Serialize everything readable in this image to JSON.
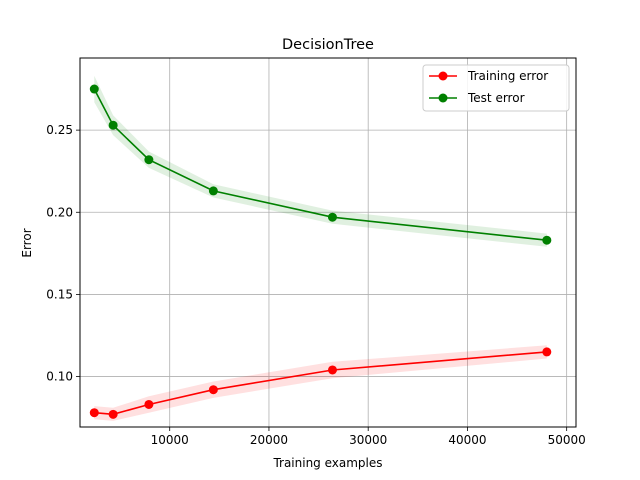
{
  "chart_data": {
    "type": "line",
    "title": "DecisionTree",
    "xlabel": "Training examples",
    "ylabel": "Error",
    "xlim": [
      960,
      50940
    ],
    "ylim": [
      0.0693,
      0.2939
    ],
    "xticks": [
      10000,
      20000,
      30000,
      40000,
      50000
    ],
    "xtick_labels": [
      "10000",
      "20000",
      "30000",
      "40000",
      "50000"
    ],
    "yticks": [
      0.1,
      0.15,
      0.2,
      0.25
    ],
    "ytick_labels": [
      "0.10",
      "0.15",
      "0.20",
      "0.25"
    ],
    "grid": true,
    "legend_position": "upper right",
    "x": [
      2400,
      4300,
      7900,
      14400,
      26400,
      48000
    ],
    "series": [
      {
        "name": "Training error",
        "color": "#ff0000",
        "values": [
          0.078,
          0.077,
          0.083,
          0.092,
          0.104,
          0.115
        ],
        "band_lower": [
          0.074,
          0.073,
          0.078,
          0.087,
          0.099,
          0.111
        ],
        "band_upper": [
          0.082,
          0.081,
          0.088,
          0.097,
          0.109,
          0.119
        ]
      },
      {
        "name": "Test error",
        "color": "#008000",
        "values": [
          0.275,
          0.253,
          0.232,
          0.213,
          0.197,
          0.183
        ],
        "band_lower": [
          0.267,
          0.247,
          0.227,
          0.209,
          0.193,
          0.179
        ],
        "band_upper": [
          0.283,
          0.259,
          0.237,
          0.217,
          0.201,
          0.187
        ]
      }
    ]
  }
}
